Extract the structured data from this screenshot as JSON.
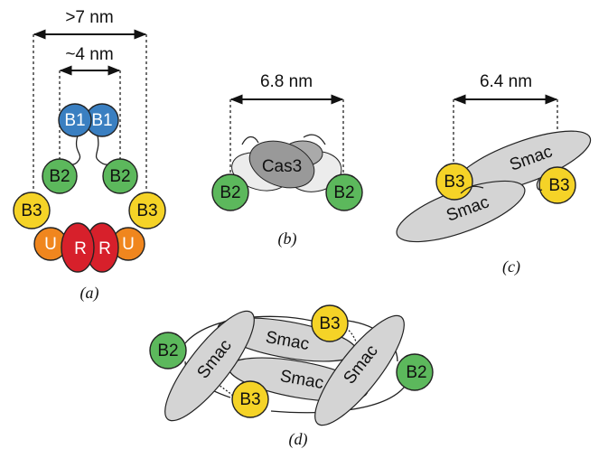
{
  "panels": [
    {
      "caption": "(a)",
      "dimensions": [
        ">7 nm",
        "~4 nm"
      ],
      "domains": [
        "B1",
        "B1",
        "B2",
        "B2",
        "B3",
        "B3",
        "U",
        "U",
        "R",
        "R"
      ]
    },
    {
      "caption": "(b)",
      "dimensions": [
        "6.8 nm"
      ],
      "domains": [
        "Cas3",
        "B2",
        "B2"
      ]
    },
    {
      "caption": "(c)",
      "dimensions": [
        "6.4 nm"
      ],
      "domains": [
        "Smac",
        "Smac",
        "B3",
        "B3"
      ]
    },
    {
      "caption": "(d)",
      "domains": [
        "B2",
        "B2",
        "B3",
        "B3",
        "Smac",
        "Smac",
        "Smac",
        "Smac"
      ]
    }
  ]
}
